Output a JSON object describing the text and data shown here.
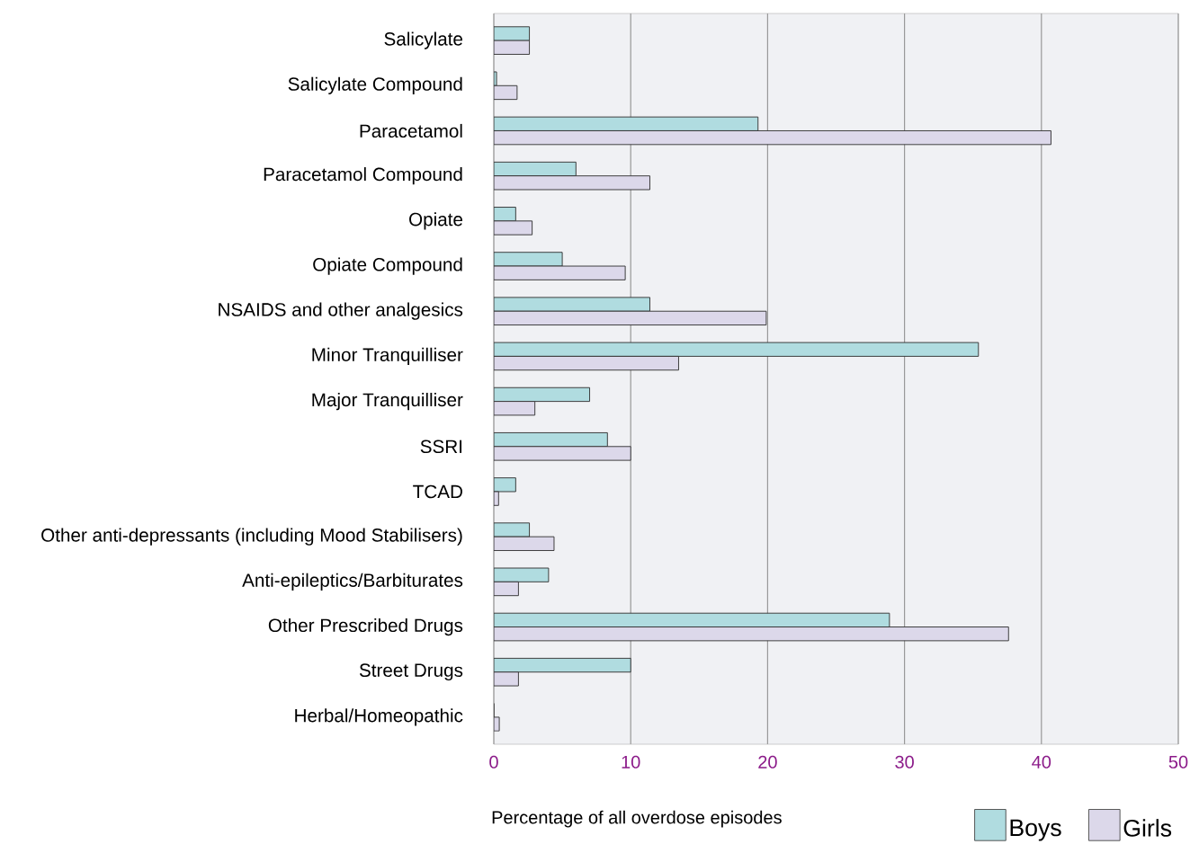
{
  "chart_data": {
    "type": "bar",
    "orientation": "horizontal",
    "categories": [
      "Salicylate",
      "Salicylate Compound",
      "Paracetamol",
      "Paracetamol Compound",
      "Opiate",
      "Opiate Compound",
      "NSAIDS and other analgesics",
      "Minor Tranquilliser",
      "Major Tranquilliser",
      "SSRI",
      "TCAD",
      "Other anti-depressants (including Mood Stabilisers)",
      "Anti-epileptics/Barbiturates",
      "Other Prescribed Drugs",
      "Street Drugs",
      "Herbal/Homeopathic"
    ],
    "series": [
      {
        "name": "Boys",
        "color": "#b0dce0",
        "values": [
          2.6,
          0.2,
          19.3,
          6.0,
          1.6,
          5.0,
          11.4,
          35.4,
          7.0,
          8.3,
          1.6,
          2.6,
          4.0,
          28.9,
          10.0,
          0
        ]
      },
      {
        "name": "Girls",
        "color": "#dcd8ea",
        "values": [
          2.6,
          1.7,
          40.7,
          11.4,
          2.8,
          9.6,
          19.9,
          13.5,
          3.0,
          10.0,
          0.35,
          4.4,
          1.8,
          37.6,
          1.8,
          0.4
        ]
      }
    ],
    "xlabel": "Percentage of all overdose episodes",
    "xlim": [
      0,
      50
    ],
    "xticks": [
      0,
      10,
      20,
      30,
      40,
      50
    ],
    "grid": "x",
    "legend": "bottom right"
  }
}
